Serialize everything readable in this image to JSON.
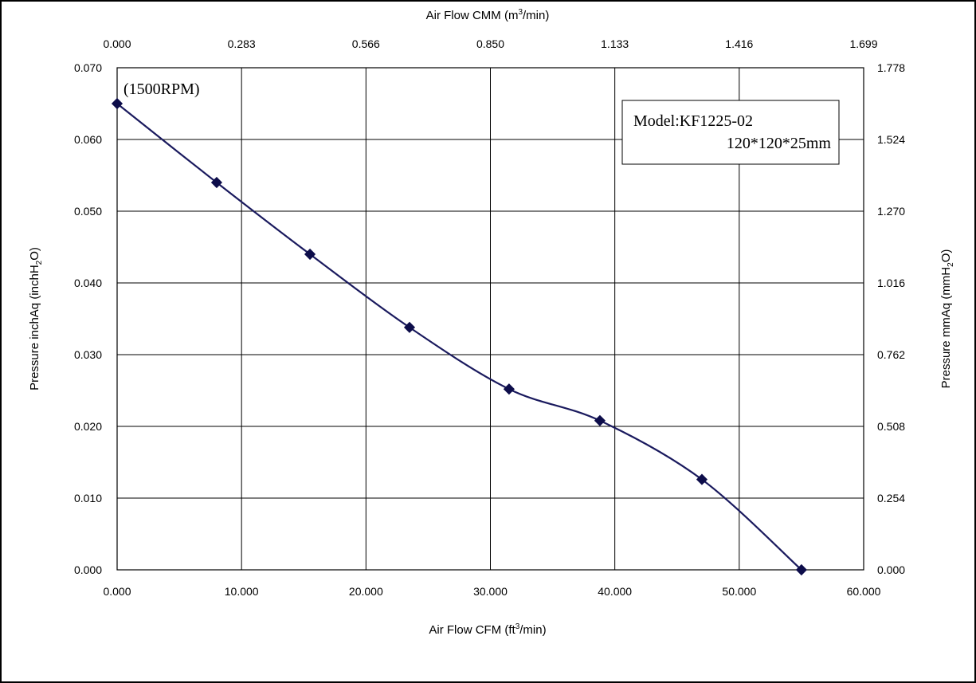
{
  "chart_data": {
    "type": "line",
    "title": "",
    "x": [
      0,
      8,
      15.5,
      23.5,
      31.5,
      38.8,
      47,
      55
    ],
    "series": [
      {
        "values": [
          0.065,
          0.054,
          0.044,
          0.0338,
          0.0252,
          0.0208,
          0.0126,
          0.0
        ]
      }
    ],
    "xlabel": {
      "text": "Air Flow CFM (ft",
      "sup": "3",
      "tail": "/min)"
    },
    "x2label": {
      "text": "Air Flow CMM (m",
      "sup": "3",
      "tail": "/min)"
    },
    "ylabel": {
      "text": "Pressure inchAq (inchH",
      "sub": "2",
      "tail": "O)"
    },
    "y2label": {
      "text": "Pressure mmAq (mmH",
      "sub": "2",
      "tail": "O)"
    },
    "xlim": [
      0,
      60
    ],
    "ylim": [
      0,
      0.07
    ],
    "x_ticks": [
      "0.000",
      "10.000",
      "20.000",
      "30.000",
      "40.000",
      "50.000",
      "60.000"
    ],
    "x2_ticks": [
      "0.000",
      "0.283",
      "0.566",
      "0.850",
      "1.133",
      "1.416",
      "1.699"
    ],
    "y_ticks": [
      "0.000",
      "0.010",
      "0.020",
      "0.030",
      "0.040",
      "0.050",
      "0.060",
      "0.070"
    ],
    "y2_ticks": [
      "0.000",
      "0.254",
      "0.508",
      "0.762",
      "1.016",
      "1.270",
      "1.524",
      "1.778"
    ],
    "grid": true,
    "annotations": {
      "rpm": "(1500RPM)",
      "model_line1": "Model:KF1225-02",
      "model_line2": "120*120*25mm"
    },
    "colors": {
      "line": "#1a1a5e",
      "marker": "#0d0d4a",
      "grid": "#000000"
    }
  }
}
